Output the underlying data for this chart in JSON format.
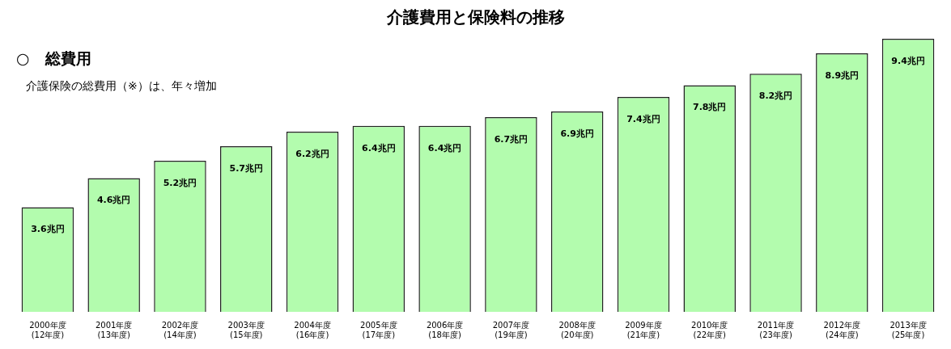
{
  "chart_data": {
    "type": "bar",
    "title": "介護費用と保険料の推移",
    "subtitle": "○　総費用",
    "annotations": [
      "介護保険の総費用（※）は、年々増加"
    ],
    "categories": [
      "2000年度\n(12年度)",
      "2001年度\n(13年度)",
      "2002年度\n(14年度)",
      "2003年度\n(15年度)",
      "2004年度\n(16年度)",
      "2005年度\n(17年度)",
      "2006年度\n(18年度)",
      "2007年度\n(19年度)",
      "2008年度\n(20年度)",
      "2009年度\n(21年度)",
      "2010年度\n(22年度)",
      "2011年度\n(23年度)",
      "2012年度\n(24年度)",
      "2013年度\n(25年度)"
    ],
    "values": [
      3.6,
      4.6,
      5.2,
      5.7,
      6.2,
      6.4,
      6.4,
      6.7,
      6.9,
      7.4,
      7.8,
      8.2,
      8.9,
      9.4
    ],
    "value_labels": [
      "3.6兆円",
      "4.6兆円",
      "5.2兆円",
      "5.7兆円",
      "6.2兆円",
      "6.4兆円",
      "6.4兆円",
      "6.7兆円",
      "6.9兆円",
      "7.4兆円",
      "7.8兆円",
      "8.2兆円",
      "8.9兆円",
      "9.4兆円"
    ],
    "color": "#b3fcae",
    "grid": false,
    "legend": false
  }
}
